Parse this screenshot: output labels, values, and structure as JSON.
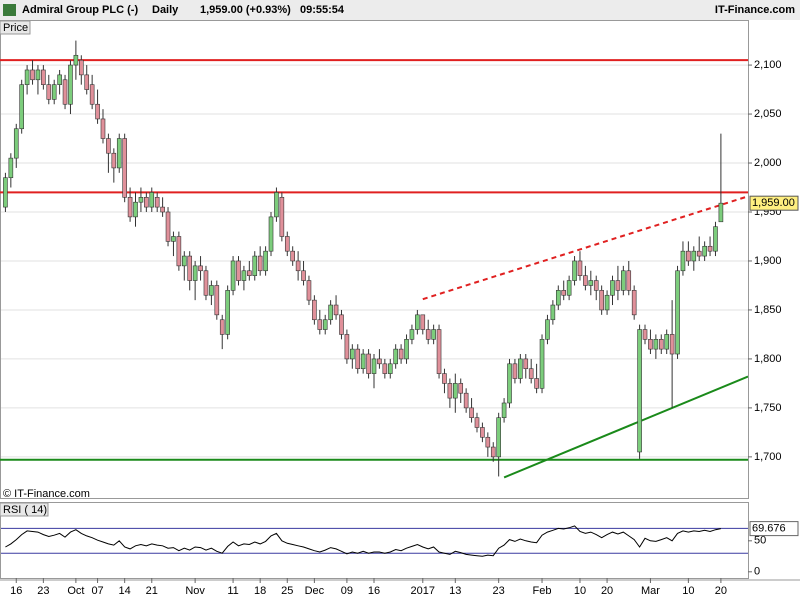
{
  "header": {
    "name": "Admiral Group PLC (-)",
    "period": "Daily",
    "quote": "1,959.00 (+0.93%)",
    "time": "09:55:54",
    "brand": "IT-Finance.com"
  },
  "chart_data": [
    {
      "type": "candlestick",
      "title": "Price",
      "watermark": "© IT-Finance.com",
      "up_color": "#7ccd7c",
      "down_color": "#e0909a",
      "xlim": [
        -1,
        137
      ],
      "ylim": [
        1658,
        2145
      ],
      "yticks": [
        {
          "value": 1700,
          "label": "1,700"
        },
        {
          "value": 1750,
          "label": "1,750"
        },
        {
          "value": 1800,
          "label": "1,800"
        },
        {
          "value": 1850,
          "label": "1,850"
        },
        {
          "value": 1900,
          "label": "1,900"
        },
        {
          "value": 1950,
          "label": "1,950"
        },
        {
          "value": 2000,
          "label": "2,000"
        },
        {
          "value": 2050,
          "label": "2,050"
        },
        {
          "value": 2100,
          "label": "2,100"
        }
      ],
      "grid": true,
      "categories": [
        null,
        null,
        "16",
        null,
        null,
        null,
        null,
        "23",
        null,
        null,
        null,
        null,
        null,
        "Oct",
        null,
        null,
        null,
        "07",
        null,
        null,
        null,
        null,
        "14",
        null,
        null,
        null,
        null,
        "21",
        null,
        null,
        null,
        null,
        null,
        null,
        null,
        "Nov",
        null,
        null,
        null,
        null,
        null,
        null,
        "11",
        null,
        null,
        null,
        null,
        "18",
        null,
        null,
        null,
        null,
        "25",
        null,
        null,
        null,
        null,
        "Dec",
        null,
        null,
        null,
        null,
        null,
        "09",
        null,
        null,
        null,
        null,
        "16",
        null,
        null,
        null,
        null,
        null,
        null,
        null,
        null,
        "2017",
        null,
        null,
        null,
        null,
        null,
        "13",
        null,
        null,
        null,
        null,
        null,
        null,
        null,
        "23",
        null,
        null,
        null,
        null,
        null,
        null,
        null,
        "Feb",
        null,
        null,
        null,
        null,
        null,
        null,
        "10",
        null,
        null,
        null,
        null,
        "20",
        null,
        null,
        null,
        null,
        null,
        null,
        null,
        "Mar",
        null,
        null,
        null,
        null,
        null,
        null,
        "10",
        null,
        null,
        null,
        null,
        null,
        "20"
      ],
      "candles": [
        [
          1955,
          1990,
          1950,
          1985
        ],
        [
          1985,
          2010,
          1975,
          2005
        ],
        [
          2005,
          2040,
          1995,
          2035
        ],
        [
          2035,
          2085,
          2030,
          2080
        ],
        [
          2080,
          2100,
          2070,
          2095
        ],
        [
          2095,
          2105,
          2080,
          2085
        ],
        [
          2085,
          2100,
          2070,
          2095
        ],
        [
          2095,
          2100,
          2075,
          2080
        ],
        [
          2080,
          2090,
          2060,
          2065
        ],
        [
          2065,
          2085,
          2060,
          2080
        ],
        [
          2080,
          2095,
          2070,
          2090
        ],
        [
          2085,
          2090,
          2055,
          2060
        ],
        [
          2060,
          2105,
          2050,
          2100
        ],
        [
          2100,
          2125,
          2085,
          2110
        ],
        [
          2105,
          2110,
          2080,
          2090
        ],
        [
          2090,
          2100,
          2070,
          2075
        ],
        [
          2080,
          2090,
          2055,
          2060
        ],
        [
          2060,
          2075,
          2040,
          2045
        ],
        [
          2045,
          2055,
          2020,
          2025
        ],
        [
          2025,
          2030,
          1990,
          2010
        ],
        [
          2010,
          2015,
          1980,
          1995
        ],
        [
          1995,
          2030,
          1990,
          2025
        ],
        [
          2025,
          2030,
          1960,
          1965
        ],
        [
          1965,
          1975,
          1940,
          1945
        ],
        [
          1945,
          1970,
          1935,
          1960
        ],
        [
          1960,
          1975,
          1950,
          1965
        ],
        [
          1965,
          1970,
          1950,
          1955
        ],
        [
          1955,
          1975,
          1950,
          1970
        ],
        [
          1965,
          1970,
          1950,
          1955
        ],
        [
          1955,
          1965,
          1945,
          1950
        ],
        [
          1950,
          1955,
          1915,
          1920
        ],
        [
          1920,
          1930,
          1905,
          1925
        ],
        [
          1925,
          1930,
          1890,
          1895
        ],
        [
          1895,
          1910,
          1880,
          1905
        ],
        [
          1905,
          1910,
          1870,
          1880
        ],
        [
          1880,
          1900,
          1860,
          1895
        ],
        [
          1895,
          1905,
          1880,
          1890
        ],
        [
          1890,
          1895,
          1860,
          1865
        ],
        [
          1865,
          1880,
          1855,
          1875
        ],
        [
          1875,
          1880,
          1840,
          1845
        ],
        [
          1840,
          1845,
          1810,
          1825
        ],
        [
          1825,
          1875,
          1820,
          1870
        ],
        [
          1870,
          1905,
          1865,
          1900
        ],
        [
          1900,
          1905,
          1875,
          1880
        ],
        [
          1880,
          1895,
          1870,
          1890
        ],
        [
          1890,
          1900,
          1880,
          1885
        ],
        [
          1885,
          1910,
          1880,
          1905
        ],
        [
          1905,
          1915,
          1885,
          1890
        ],
        [
          1890,
          1915,
          1885,
          1910
        ],
        [
          1910,
          1950,
          1905,
          1945
        ],
        [
          1945,
          1975,
          1940,
          1970
        ],
        [
          1965,
          1970,
          1920,
          1925
        ],
        [
          1925,
          1930,
          1905,
          1910
        ],
        [
          1910,
          1915,
          1895,
          1900
        ],
        [
          1900,
          1910,
          1880,
          1890
        ],
        [
          1890,
          1900,
          1875,
          1880
        ],
        [
          1880,
          1885,
          1855,
          1860
        ],
        [
          1860,
          1865,
          1835,
          1840
        ],
        [
          1840,
          1850,
          1825,
          1830
        ],
        [
          1830,
          1845,
          1825,
          1840
        ],
        [
          1840,
          1860,
          1835,
          1855
        ],
        [
          1855,
          1865,
          1840,
          1845
        ],
        [
          1845,
          1850,
          1820,
          1825
        ],
        [
          1825,
          1830,
          1795,
          1800
        ],
        [
          1800,
          1815,
          1790,
          1810
        ],
        [
          1810,
          1815,
          1785,
          1790
        ],
        [
          1790,
          1810,
          1785,
          1805
        ],
        [
          1805,
          1810,
          1780,
          1785
        ],
        [
          1785,
          1805,
          1770,
          1800
        ],
        [
          1800,
          1810,
          1790,
          1795
        ],
        [
          1795,
          1800,
          1780,
          1785
        ],
        [
          1785,
          1800,
          1780,
          1795
        ],
        [
          1795,
          1815,
          1790,
          1810
        ],
        [
          1810,
          1815,
          1795,
          1800
        ],
        [
          1800,
          1825,
          1795,
          1820
        ],
        [
          1820,
          1835,
          1815,
          1830
        ],
        [
          1830,
          1850,
          1825,
          1845
        ],
        [
          1845,
          1845,
          1825,
          1830
        ],
        [
          1830,
          1840,
          1815,
          1820
        ],
        [
          1820,
          1835,
          1815,
          1830
        ],
        [
          1830,
          1835,
          1780,
          1785
        ],
        [
          1785,
          1790,
          1765,
          1775
        ],
        [
          1775,
          1780,
          1750,
          1760
        ],
        [
          1760,
          1785,
          1745,
          1775
        ],
        [
          1775,
          1780,
          1755,
          1765
        ],
        [
          1765,
          1770,
          1745,
          1750
        ],
        [
          1750,
          1760,
          1735,
          1740
        ],
        [
          1740,
          1745,
          1725,
          1730
        ],
        [
          1730,
          1735,
          1715,
          1720
        ],
        [
          1720,
          1725,
          1700,
          1710
        ],
        [
          1710,
          1715,
          1695,
          1700
        ],
        [
          1700,
          1745,
          1680,
          1740
        ],
        [
          1740,
          1760,
          1735,
          1755
        ],
        [
          1755,
          1800,
          1750,
          1795
        ],
        [
          1795,
          1800,
          1775,
          1780
        ],
        [
          1780,
          1805,
          1775,
          1800
        ],
        [
          1800,
          1805,
          1780,
          1790
        ],
        [
          1790,
          1800,
          1775,
          1780
        ],
        [
          1780,
          1795,
          1765,
          1770
        ],
        [
          1770,
          1825,
          1765,
          1820
        ],
        [
          1820,
          1845,
          1815,
          1840
        ],
        [
          1840,
          1860,
          1835,
          1855
        ],
        [
          1855,
          1875,
          1850,
          1870
        ],
        [
          1870,
          1880,
          1860,
          1865
        ],
        [
          1865,
          1885,
          1860,
          1880
        ],
        [
          1880,
          1905,
          1875,
          1900
        ],
        [
          1900,
          1910,
          1880,
          1885
        ],
        [
          1885,
          1895,
          1870,
          1875
        ],
        [
          1875,
          1890,
          1865,
          1880
        ],
        [
          1880,
          1885,
          1860,
          1870
        ],
        [
          1870,
          1875,
          1845,
          1850
        ],
        [
          1850,
          1870,
          1845,
          1865
        ],
        [
          1865,
          1885,
          1855,
          1880
        ],
        [
          1880,
          1895,
          1860,
          1870
        ],
        [
          1870,
          1895,
          1865,
          1890
        ],
        [
          1890,
          1900,
          1865,
          1870
        ],
        [
          1870,
          1875,
          1840,
          1845
        ],
        [
          1705,
          1835,
          1698,
          1830
        ],
        [
          1830,
          1835,
          1815,
          1820
        ],
        [
          1820,
          1830,
          1805,
          1810
        ],
        [
          1810,
          1825,
          1800,
          1820
        ],
        [
          1820,
          1825,
          1805,
          1810
        ],
        [
          1810,
          1830,
          1805,
          1825
        ],
        [
          1825,
          1860,
          1750,
          1805
        ],
        [
          1805,
          1895,
          1800,
          1890
        ],
        [
          1890,
          1920,
          1885,
          1910
        ],
        [
          1910,
          1920,
          1895,
          1900
        ],
        [
          1900,
          1915,
          1890,
          1910
        ],
        [
          1910,
          1925,
          1900,
          1905
        ],
        [
          1905,
          1920,
          1900,
          1915
        ],
        [
          1915,
          1925,
          1905,
          1910
        ],
        [
          1910,
          1940,
          1905,
          1935
        ],
        [
          1940,
          2030,
          1940,
          1959
        ]
      ],
      "hlines": [
        {
          "value": 2105,
          "color": "#e02020"
        },
        {
          "value": 1970,
          "color": "#e02020"
        },
        {
          "value": 1697,
          "color": "#1a8a1a"
        }
      ],
      "trendlines": [
        {
          "x": [
            77,
            137
          ],
          "values": [
            1861,
            1966
          ],
          "color": "#e02020",
          "dashed": true
        },
        {
          "x": [
            92,
            137
          ],
          "values": [
            1679,
            1782
          ],
          "color": "#1a8a1a",
          "dashed": false
        }
      ],
      "last_price": {
        "value": 1959,
        "label": "1,959.00"
      }
    },
    {
      "type": "line",
      "title": "RSI ( 14)",
      "xlim": [
        -1,
        137
      ],
      "ylim": [
        -10,
        111
      ],
      "yticks": [
        0,
        50
      ],
      "levels": [
        30,
        70
      ],
      "level_color": "#3a3aa0",
      "series": [
        {
          "color": "#000000",
          "values": [
            40,
            45,
            52,
            60,
            66,
            65,
            64,
            60,
            57,
            59,
            62,
            56,
            64,
            68,
            62,
            58,
            55,
            51,
            48,
            45,
            43,
            50,
            40,
            37,
            42,
            44,
            42,
            45,
            43,
            42,
            38,
            39,
            34,
            38,
            35,
            40,
            39,
            35,
            38,
            33,
            30,
            41,
            48,
            42,
            45,
            44,
            48,
            45,
            49,
            58,
            62,
            50,
            46,
            44,
            42,
            40,
            37,
            34,
            32,
            35,
            39,
            37,
            33,
            29,
            32,
            30,
            33,
            30,
            32,
            32,
            30,
            32,
            36,
            34,
            38,
            41,
            44,
            40,
            37,
            40,
            32,
            30,
            28,
            33,
            31,
            28,
            27,
            26,
            25,
            27,
            26,
            38,
            43,
            52,
            49,
            53,
            50,
            48,
            47,
            59,
            64,
            67,
            70,
            69,
            71,
            74,
            65,
            62,
            64,
            60,
            55,
            60,
            64,
            61,
            64,
            58,
            52,
            40,
            54,
            50,
            49,
            52,
            55,
            50,
            62,
            66,
            64,
            66,
            65,
            67,
            65,
            68,
            69.676
          ]
        }
      ]
    }
  ]
}
